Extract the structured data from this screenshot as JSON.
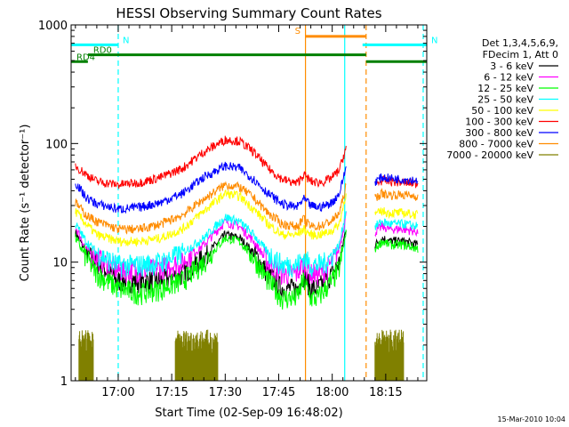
{
  "chart_data": {
    "type": "line",
    "title": "HESSI Observing Summary Count Rates",
    "xlabel": "Start Time (02-Sep-09 16:48:02)",
    "ylabel": "Count Rate (s⁻¹ detector⁻¹)",
    "yscale": "log",
    "ylim": [
      1,
      1000
    ],
    "xlim_minutes": [
      -1.2,
      98.5
    ],
    "x_ticks": [
      {
        "label": "17:00",
        "minute": 12
      },
      {
        "label": "17:15",
        "minute": 27
      },
      {
        "label": "17:30",
        "minute": 42
      },
      {
        "label": "17:45",
        "minute": 57
      },
      {
        "label": "18:00",
        "minute": 72
      },
      {
        "label": "18:15",
        "minute": 87
      }
    ],
    "y_ticks": [
      {
        "label": "1",
        "value": 1
      },
      {
        "label": "10",
        "value": 10
      },
      {
        "label": "100",
        "value": 100
      },
      {
        "label": "1000",
        "value": 1000
      }
    ],
    "legend_header": [
      "Det 1,3,4,5,6,9,",
      "FDecim 1, Att 0"
    ],
    "series": [
      {
        "name": "3 - 6 keV",
        "color": "#000000",
        "segments": [
          {
            "x": [
              0,
              3,
              6,
              12,
              18,
              24,
              30,
              36,
              42,
              46,
              50,
              54,
              58,
              62,
              64,
              66,
              68,
              70,
              72,
              74,
              76
            ],
            "y": [
              18,
              12,
              10,
              7,
              7,
              7,
              8,
              11,
              17,
              16,
              12,
              8,
              6,
              6,
              8,
              6,
              6,
              7,
              8,
              10,
              20
            ]
          },
          {
            "x": [
              84,
              86,
              88,
              92,
              96
            ],
            "y": [
              14,
              16,
              15,
              15,
              14
            ]
          }
        ]
      },
      {
        "name": "6 - 12 keV",
        "color": "#ff00ff",
        "segments": [
          {
            "x": [
              0,
              3,
              6,
              12,
              18,
              24,
              30,
              36,
              42,
              46,
              50,
              54,
              58,
              62,
              64,
              66,
              68,
              70,
              72,
              74,
              76
            ],
            "y": [
              20,
              13,
              11,
              8.5,
              8.5,
              9,
              10,
              14,
              22,
              20,
              15,
              10,
              8,
              8,
              10,
              8,
              8,
              8.5,
              10,
              13,
              26
            ]
          },
          {
            "x": [
              84,
              86,
              88,
              92,
              96
            ],
            "y": [
              18,
              20,
              19,
              19,
              18
            ]
          }
        ]
      },
      {
        "name": "12 - 25 keV",
        "color": "#00ff00",
        "segments": [
          {
            "x": [
              0,
              3,
              6,
              12,
              18,
              24,
              30,
              36,
              42,
              46,
              50,
              54,
              58,
              62,
              64,
              66,
              68,
              70,
              72,
              74,
              76
            ],
            "y": [
              16,
              11,
              8,
              6,
              5.5,
              6,
              7,
              10,
              16,
              15,
              11,
              7,
              5,
              5,
              7,
              5,
              5,
              6,
              7,
              9,
              18
            ]
          },
          {
            "x": [
              84,
              86,
              88,
              92,
              96
            ],
            "y": [
              13,
              15,
              14,
              14,
              13
            ]
          }
        ]
      },
      {
        "name": "25 - 50 keV",
        "color": "#00ffff",
        "segments": [
          {
            "x": [
              0,
              3,
              6,
              12,
              18,
              24,
              30,
              36,
              42,
              46,
              50,
              54,
              58,
              62,
              64,
              66,
              68,
              70,
              72,
              74,
              76
            ],
            "y": [
              21,
              15,
              12,
              9.5,
              9.5,
              10,
              12,
              16,
              24,
              22,
              17,
              12,
              9.5,
              9.5,
              11,
              9.5,
              9.5,
              10,
              11.5,
              14,
              29
            ]
          },
          {
            "x": [
              84,
              86,
              88,
              92,
              96
            ],
            "y": [
              20,
              22,
              21,
              21,
              20
            ]
          }
        ]
      },
      {
        "name": "50 - 100 keV",
        "color": "#ffff00",
        "segments": [
          {
            "x": [
              0,
              3,
              6,
              12,
              18,
              24,
              30,
              36,
              42,
              46,
              50,
              54,
              58,
              62,
              64,
              66,
              68,
              70,
              72,
              74,
              76
            ],
            "y": [
              27,
              21,
              17,
              15,
              15,
              16,
              19,
              27,
              38,
              36,
              28,
              21,
              17,
              17,
              19,
              17,
              17,
              17.5,
              18.5,
              21,
              40
            ]
          },
          {
            "x": [
              84,
              86,
              88,
              92,
              96
            ],
            "y": [
              25,
              27,
              26,
              26,
              25
            ]
          }
        ]
      },
      {
        "name": "100 - 300 keV",
        "color": "#ff0000",
        "segments": [
          {
            "x": [
              0,
              3,
              6,
              12,
              18,
              24,
              30,
              36,
              42,
              46,
              50,
              54,
              58,
              62,
              64,
              66,
              68,
              70,
              72,
              74,
              76
            ],
            "y": [
              65,
              55,
              48,
              45,
              47,
              52,
              62,
              85,
              108,
              105,
              85,
              62,
              50,
              46,
              55,
              48,
              47,
              48,
              52,
              60,
              95
            ]
          },
          {
            "x": [
              84,
              86,
              88,
              92,
              96
            ],
            "y": [
              45,
              49,
              48,
              47,
              46
            ]
          }
        ]
      },
      {
        "name": "300 - 800 keV",
        "color": "#0000ff",
        "segments": [
          {
            "x": [
              0,
              3,
              6,
              12,
              18,
              24,
              30,
              36,
              42,
              46,
              50,
              54,
              58,
              62,
              64,
              66,
              68,
              70,
              72,
              74,
              76
            ],
            "y": [
              47,
              35,
              31,
              28,
              29,
              32,
              38,
              52,
              65,
              62,
              50,
              38,
              31,
              29,
              34,
              30,
              29,
              30,
              32,
              38,
              65
            ]
          },
          {
            "x": [
              84,
              86,
              88,
              92,
              96
            ],
            "y": [
              48,
              52,
              51,
              50,
              49
            ]
          }
        ]
      },
      {
        "name": "800 - 7000 keV",
        "color": "#ff8c00",
        "segments": [
          {
            "x": [
              0,
              3,
              6,
              12,
              18,
              24,
              30,
              36,
              42,
              46,
              50,
              54,
              58,
              62,
              64,
              66,
              68,
              70,
              72,
              74,
              76
            ],
            "y": [
              32,
              25,
              22,
              19,
              19,
              21,
              25,
              34,
              45,
              43,
              35,
              26,
              21,
              20,
              23,
              20,
              20,
              21,
              22.5,
              26,
              45
            ]
          },
          {
            "x": [
              84,
              86,
              88,
              92,
              96
            ],
            "y": [
              35,
              38,
              37,
              37,
              36
            ]
          }
        ]
      },
      {
        "name": "7000 - 20000 keV",
        "color": "#808000",
        "bursts": [
          [
            1,
            5
          ],
          [
            28,
            40
          ],
          [
            84,
            92
          ]
        ],
        "burst_level": 2
      }
    ],
    "annotations": [
      {
        "label": "N",
        "color": "#00ffff",
        "y_level": 680,
        "x_start": -1.2,
        "x_end": 12
      },
      {
        "label": "N",
        "color": "#00ffff",
        "y_level": 680,
        "x_start": 80.5,
        "x_end": 98.5
      },
      {
        "label": "S",
        "color": "#ff8c00",
        "y_level": 800,
        "x_start": 64.5,
        "x_end": 81.5
      },
      {
        "label": "RD0",
        "color": "#008000",
        "y_level": 560,
        "x_start": 3.5,
        "x_end": 81.5
      },
      {
        "label": "RD4",
        "color": "#008000",
        "y_level": 490,
        "x_start": -1.2,
        "x_end": 3.5
      },
      {
        "label": "",
        "color": "#008000",
        "y_level": 490,
        "x_start": 81.5,
        "x_end": 98.5
      }
    ],
    "vertical_markers": [
      {
        "minute": 12,
        "color": "#00ffff",
        "style": "dashed"
      },
      {
        "minute": 64.5,
        "color": "#ff8c00",
        "style": "solid"
      },
      {
        "minute": 75.5,
        "color": "#00ffff",
        "style": "solid"
      },
      {
        "minute": 81.5,
        "color": "#ff8c00",
        "style": "dashed"
      },
      {
        "minute": 97.5,
        "color": "#00ffff",
        "style": "dashed"
      }
    ],
    "footer_date": "15-Mar-2010 10:04"
  }
}
